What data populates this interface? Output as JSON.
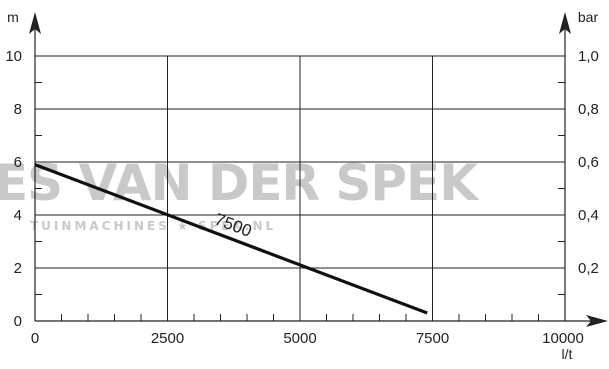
{
  "watermark": {
    "line1": "ES VAN DER SPEK",
    "line2": "TUINMACHINES ★ SPEK.NL"
  },
  "chart_data": {
    "type": "line",
    "title": "",
    "xlabel": "l/t",
    "ylabel": "m",
    "y2label": "bar",
    "xlim": [
      0,
      10000
    ],
    "ylim": [
      0,
      10
    ],
    "y2lim": [
      0,
      1.0
    ],
    "x_ticks": [
      0,
      2500,
      5000,
      7500,
      10000
    ],
    "x_tick_labels": [
      "0",
      "2500",
      "5000",
      "7500",
      "10000"
    ],
    "y_ticks": [
      0,
      2,
      4,
      6,
      8,
      10
    ],
    "y_tick_labels": [
      "0",
      "2",
      "4",
      "6",
      "8",
      "10"
    ],
    "y2_ticks": [
      0.2,
      0.4,
      0.6,
      0.8,
      1.0
    ],
    "y2_tick_labels": [
      "0,2",
      "0,4",
      "0,6",
      "0,8",
      "1,0"
    ],
    "grid": true,
    "series": [
      {
        "name": "7500",
        "color": "#111111",
        "x": [
          0,
          7400
        ],
        "y": [
          5.9,
          0.3
        ]
      }
    ]
  }
}
